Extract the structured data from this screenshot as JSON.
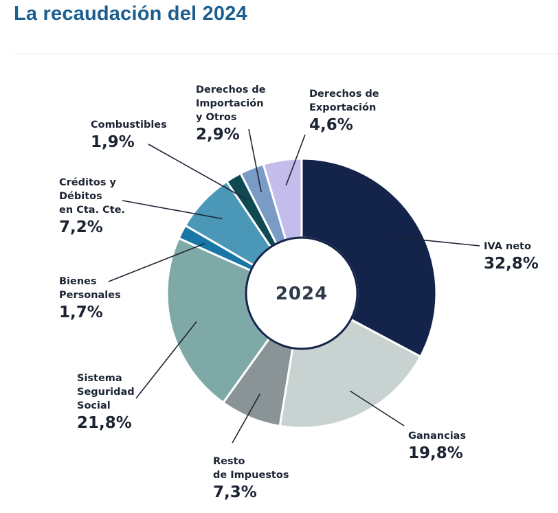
{
  "header": {
    "title": "La recaudación del 2024"
  },
  "chart_data": {
    "type": "pie",
    "variant": "donut",
    "center_label": "2024",
    "slices": [
      {
        "id": "iva",
        "lines": [
          "IVA neto"
        ],
        "pct_label": "32,8%",
        "value": 32.8,
        "color": "#14234a"
      },
      {
        "id": "ganancias",
        "lines": [
          "Ganancias"
        ],
        "pct_label": "19,8%",
        "value": 19.8,
        "color": "#c8d3d1"
      },
      {
        "id": "resto",
        "lines": [
          "Resto",
          "de Impuestos"
        ],
        "pct_label": "7,3%",
        "value": 7.3,
        "color": "#8a9496"
      },
      {
        "id": "seguridad",
        "lines": [
          "Sistema",
          "Seguridad",
          "Social"
        ],
        "pct_label": "21,8%",
        "value": 21.8,
        "color": "#7fa9a7"
      },
      {
        "id": "bienes",
        "lines": [
          "Bienes",
          "Personales"
        ],
        "pct_label": "1,7%",
        "value": 1.7,
        "color": "#1877a6"
      },
      {
        "id": "creditos",
        "lines": [
          "Créditos y",
          "Débitos",
          "en Cta. Cte."
        ],
        "pct_label": "7,2%",
        "value": 7.2,
        "color": "#4a97b8"
      },
      {
        "id": "combustibles",
        "lines": [
          "Combustibles"
        ],
        "pct_label": "1,9%",
        "value": 1.9,
        "color": "#0f4a52"
      },
      {
        "id": "importacion",
        "lines": [
          "Derechos de",
          "Importación",
          "y Otros"
        ],
        "pct_label": "2,9%",
        "value": 2.9,
        "color": "#7b9bc7"
      },
      {
        "id": "exportacion",
        "lines": [
          "Derechos de",
          "Exportación"
        ],
        "pct_label": "4,6%",
        "value": 4.6,
        "color": "#c4bcea"
      }
    ]
  }
}
